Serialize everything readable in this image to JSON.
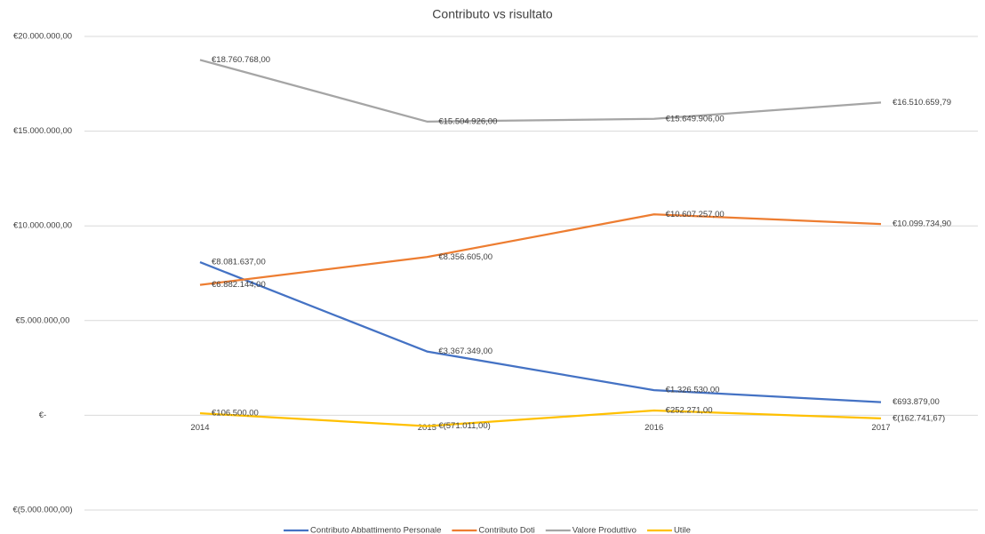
{
  "chart_data": {
    "type": "line",
    "title": "Contributo vs risultato",
    "categories": [
      "2014",
      "2015",
      "2016",
      "2017"
    ],
    "series": [
      {
        "name": "Contributo Abbattimento Personale",
        "color": "#4472c4",
        "values": [
          8081637,
          3367349,
          1326530,
          693879
        ],
        "value_labels": [
          "€8.081.637,00",
          "€3.367.349,00",
          "€1.326.530,00",
          "€693.879,00"
        ]
      },
      {
        "name": "Contributo Doti",
        "color": "#ed7d31",
        "values": [
          6882144,
          8356605,
          10607257,
          10099734.9
        ],
        "value_labels": [
          "€6.882.144,00",
          "€8.356.605,00",
          "€10.607.257,00",
          "€10.099.734,90"
        ]
      },
      {
        "name": "Valore Produttivo",
        "color": "#a5a5a5",
        "values": [
          18760768,
          15504926,
          15649906,
          16510659.79
        ],
        "value_labels": [
          "€18.760.768,00",
          "€15.504.926,00",
          "€15.649.906,00",
          "€16.510.659,79"
        ]
      },
      {
        "name": "Utile",
        "color": "#ffc000",
        "values": [
          106500,
          -571011,
          252271,
          -162741.67
        ],
        "value_labels": [
          "€106.500,00",
          "€(571.011,00)",
          "€252.271,00",
          "€(162.741,67)"
        ]
      }
    ],
    "ylim": [
      -5000000,
      20000000
    ],
    "yticks": [
      {
        "value": -5000000,
        "label": "€(5.000.000,00)"
      },
      {
        "value": 0,
        "label": "€-"
      },
      {
        "value": 5000000,
        "label": "€5.000.000,00"
      },
      {
        "value": 10000000,
        "label": "€10.000.000,00"
      },
      {
        "value": 15000000,
        "label": "€15.000.000,00"
      },
      {
        "value": 20000000,
        "label": "€20.000.000,00"
      }
    ],
    "grid": true,
    "legend": "bottom"
  }
}
